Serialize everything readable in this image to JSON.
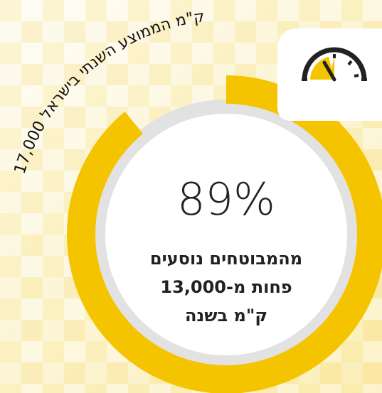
{
  "chart_data": {
    "type": "donut",
    "values": [
      89
    ],
    "value_labels": [
      "89%"
    ],
    "color": "#f5c400",
    "track_color": "#e2e2e2",
    "subtitle_lines": [
      "מהמבוטחים נוסעים",
      "פחות מ-13,000",
      "ק\"מ בשנה"
    ],
    "annotation": "17,000 ק\"מ הממוצע השנתי בישראל"
  }
}
